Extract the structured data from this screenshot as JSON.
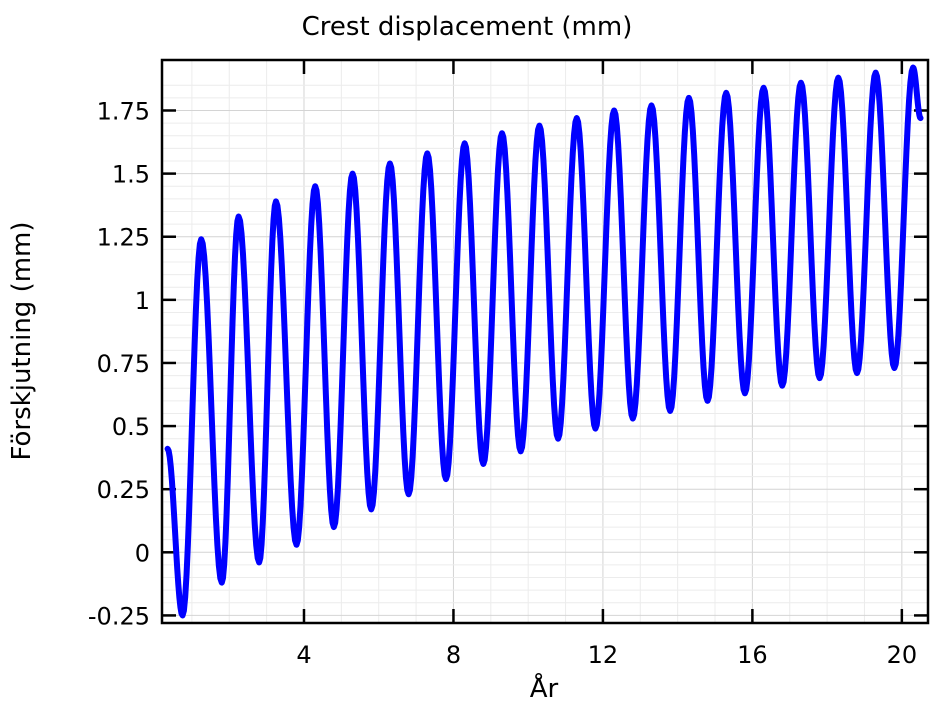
{
  "chart_data": {
    "type": "line",
    "title": "Crest displacement (mm)",
    "xlabel": "År",
    "ylabel": "Förskjutning (mm)",
    "xlim": [
      0.2,
      20.7
    ],
    "ylim": [
      -0.28,
      1.95
    ],
    "x_ticks": [
      4,
      8,
      12,
      16,
      20
    ],
    "x_tick_labels": [
      "4",
      "8",
      "12",
      "16",
      "20"
    ],
    "y_ticks": [
      -0.25,
      0,
      0.25,
      0.5,
      0.75,
      1,
      1.25,
      1.5,
      1.75
    ],
    "y_tick_labels": [
      "-0.25",
      "0",
      "0.25",
      "0.5",
      "0.75",
      "1",
      "1.25",
      "1.5",
      "1.75"
    ],
    "grid": true,
    "series": [
      {
        "name": "Crest displacement",
        "color": "#0000ff",
        "x": [
          0.35,
          0.75,
          1.25,
          1.8,
          2.25,
          2.8,
          3.25,
          3.8,
          4.3,
          4.8,
          5.3,
          5.8,
          6.3,
          6.8,
          7.3,
          7.8,
          8.3,
          8.8,
          9.3,
          9.8,
          10.3,
          10.8,
          11.3,
          11.8,
          12.3,
          12.8,
          13.3,
          13.8,
          14.3,
          14.8,
          15.3,
          15.8,
          16.3,
          16.8,
          17.3,
          17.8,
          18.3,
          18.8,
          19.3,
          19.8,
          20.3,
          20.5
        ],
        "y": [
          0.41,
          -0.25,
          1.24,
          -0.12,
          1.33,
          -0.04,
          1.39,
          0.03,
          1.45,
          0.1,
          1.5,
          0.17,
          1.54,
          0.23,
          1.58,
          0.29,
          1.62,
          0.35,
          1.66,
          0.4,
          1.69,
          0.45,
          1.72,
          0.49,
          1.75,
          0.53,
          1.77,
          0.56,
          1.8,
          0.6,
          1.82,
          0.63,
          1.84,
          0.66,
          1.86,
          0.69,
          1.88,
          0.71,
          1.9,
          0.73,
          1.92,
          1.72
        ]
      }
    ]
  }
}
